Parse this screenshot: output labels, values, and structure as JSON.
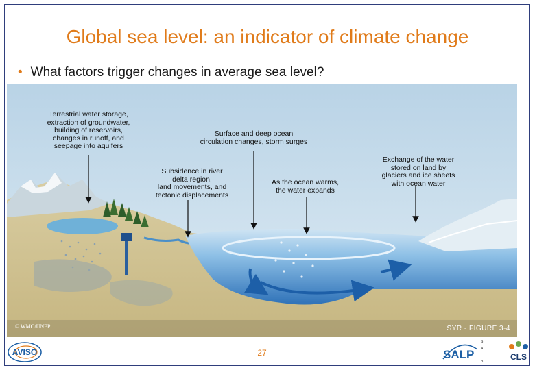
{
  "slide": {
    "title": "Global sea level: an indicator of climate change",
    "bullet": "What factors trigger changes in average sea level?",
    "page_number": "27"
  },
  "figure": {
    "labels": {
      "terrestrial": "Terrestrial water storage,\nextraction of groundwater,\nbuilding of reservoirs,\nchanges in runoff, and\nseepage into aquifers",
      "circulation": "Surface and deep ocean\ncirculation changes, storm surges",
      "subsidence": "Subsidence in river\ndelta region,\nland movements, and\ntectonic displacements",
      "warming": "As the ocean warms,\nthe water expands",
      "exchange": "Exchange of the water\nstored on land by\nglaciers and ice sheets\nwith ocean water"
    },
    "credit_left": "© WMO/UNEP",
    "credit_right": "SYR - FIGURE 3-4"
  },
  "logos": {
    "aviso": "AVISO",
    "salp": "SALP",
    "salp_acronym": [
      "S",
      "A",
      "L",
      "P"
    ],
    "cls": "CLS"
  },
  "colors": {
    "title": "#e07b1a",
    "frame": "#2f3e7c",
    "sky": "#c6dceb",
    "ocean": "#5a9bd5",
    "land": "#d7c89a"
  }
}
